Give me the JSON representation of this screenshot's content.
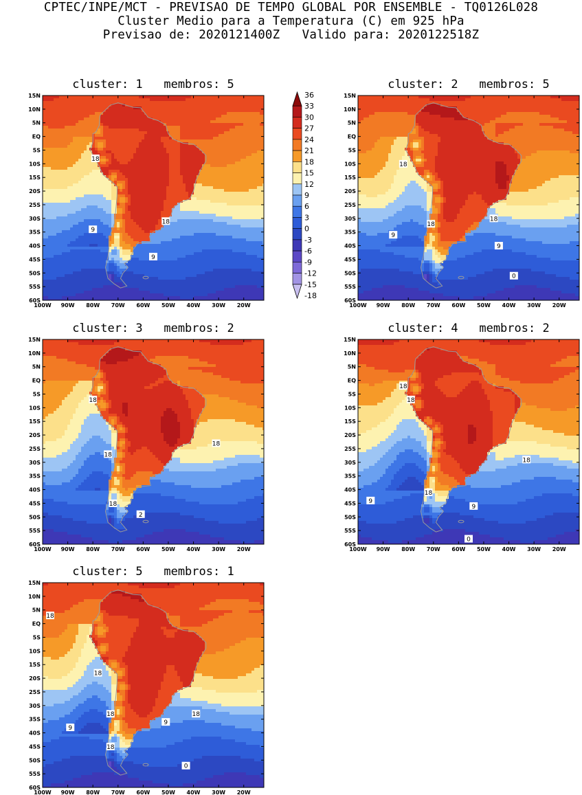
{
  "header": {
    "line1": "CPTEC/INPE/MCT - PREVISAO DE TEMPO GLOBAL POR ENSEMBLE - TQ0126L028",
    "line2": "Cluster Medio para a Temperatura (C) em 925 hPa",
    "line3": "Previsao de: 2020121400Z   Valido para: 2020122518Z"
  },
  "axes": {
    "lat_labels": [
      "15N",
      "10N",
      "5N",
      "EQ",
      "5S",
      "10S",
      "15S",
      "20S",
      "25S",
      "30S",
      "35S",
      "40S",
      "45S",
      "50S",
      "55S",
      "60S"
    ],
    "lon_labels": [
      "100W",
      "90W",
      "80W",
      "70W",
      "60W",
      "50W",
      "40W",
      "30W",
      "20W"
    ],
    "lat_range": [
      -60,
      15
    ],
    "lon_range": [
      -100,
      -12
    ]
  },
  "colorbar": {
    "levels": [
      "36",
      "33",
      "30",
      "27",
      "24",
      "21",
      "18",
      "15",
      "12",
      "9",
      "6",
      "3",
      "0",
      "-3",
      "-6",
      "-9",
      "-12",
      "-15",
      "-18"
    ],
    "colors": [
      "#a01010",
      "#c8201c",
      "#e03a20",
      "#f05a22",
      "#f6901e",
      "#f8b040",
      "#fce088",
      "#9ec6f5",
      "#6a9ef0",
      "#3c72e4",
      "#2b58d8",
      "#2845c0",
      "#3a36b8",
      "#5a44c4",
      "#7a66d6",
      "#9c8ae2",
      "#bcb0ec",
      "#dcd6f6"
    ]
  },
  "panels": [
    {
      "title": "cluster: 1   membros: 5",
      "contour_labels": [
        {
          "text": "18",
          "lon": -79,
          "lat": -8
        },
        {
          "text": "18",
          "lon": -51,
          "lat": -31
        },
        {
          "text": "9",
          "lon": -80,
          "lat": -34
        },
        {
          "text": "9",
          "lon": -56,
          "lat": -44
        }
      ]
    },
    {
      "title": "cluster: 2   membros: 5",
      "contour_labels": [
        {
          "text": "18",
          "lon": -82,
          "lat": -10
        },
        {
          "text": "18",
          "lon": -71,
          "lat": -32
        },
        {
          "text": "18",
          "lon": -46,
          "lat": -30
        },
        {
          "text": "9",
          "lon": -86,
          "lat": -36
        },
        {
          "text": "9",
          "lon": -44,
          "lat": -40
        },
        {
          "text": "0",
          "lon": -38,
          "lat": -51
        }
      ]
    },
    {
      "title": "cluster: 3   membros: 2",
      "contour_labels": [
        {
          "text": "18",
          "lon": -80,
          "lat": -7
        },
        {
          "text": "18",
          "lon": -74,
          "lat": -27
        },
        {
          "text": "18",
          "lon": -31,
          "lat": -23
        },
        {
          "text": "18",
          "lon": -72,
          "lat": -45
        },
        {
          "text": "2",
          "lon": -61,
          "lat": -49
        }
      ]
    },
    {
      "title": "cluster: 4   membros: 2",
      "contour_labels": [
        {
          "text": "18",
          "lon": -82,
          "lat": -2
        },
        {
          "text": "18",
          "lon": -79,
          "lat": -7
        },
        {
          "text": "18",
          "lon": -33,
          "lat": -29
        },
        {
          "text": "18",
          "lon": -72,
          "lat": -41
        },
        {
          "text": "9",
          "lon": -95,
          "lat": -44
        },
        {
          "text": "9",
          "lon": -54,
          "lat": -46
        },
        {
          "text": "0",
          "lon": -56,
          "lat": -58
        }
      ]
    },
    {
      "title": "cluster: 5   membros: 1",
      "contour_labels": [
        {
          "text": "18",
          "lon": -97,
          "lat": 3
        },
        {
          "text": "18",
          "lon": -78,
          "lat": -18
        },
        {
          "text": "18",
          "lon": -73,
          "lat": -33
        },
        {
          "text": "18",
          "lon": -39,
          "lat": -33
        },
        {
          "text": "18",
          "lon": -73,
          "lat": -45
        },
        {
          "text": "9",
          "lon": -89,
          "lat": -38
        },
        {
          "text": "9",
          "lon": -51,
          "lat": -36
        },
        {
          "text": "0",
          "lon": -43,
          "lat": -52
        }
      ]
    }
  ]
}
